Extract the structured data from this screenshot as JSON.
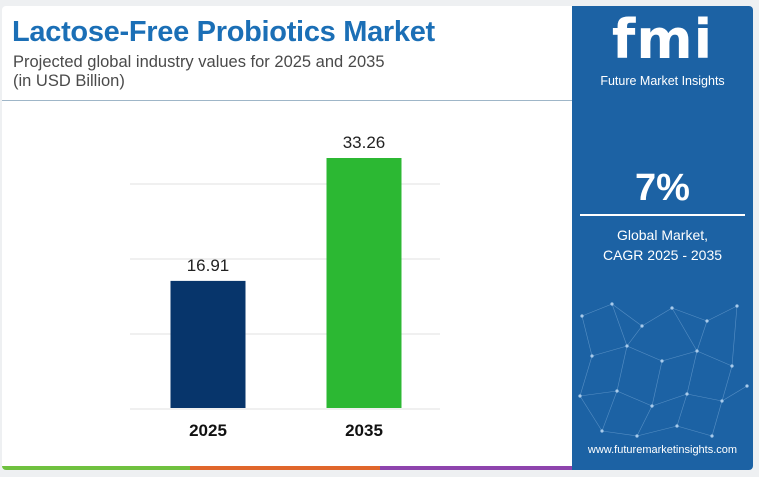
{
  "colors": {
    "title": "#1b6fb6",
    "bar_2025": "#07356b",
    "bar_2035": "#2cb833",
    "side_panel": "#1c62a4",
    "footer": [
      "#6fc13f",
      "#e0662b",
      "#8e44ad",
      "#1c62a4"
    ]
  },
  "header": {
    "title": "Lactose-Free Probiotics Market",
    "subtitle_line1": "Projected global industry values for 2025 and 2035",
    "subtitle_line2": "(in USD Billion)"
  },
  "chart_data": {
    "type": "bar",
    "categories": [
      "2025",
      "2035"
    ],
    "values": [
      16.91,
      33.26
    ],
    "value_labels": [
      "16.91",
      "33.26"
    ],
    "ylim": [
      0,
      36
    ],
    "grid": true,
    "legend": "none"
  },
  "side_panel": {
    "logo": "fmi",
    "logo_subtitle": "Future Market Insights",
    "cagr_value": "7%",
    "cagr_label_line1": "Global Market,",
    "cagr_label_line2": "CAGR 2025 - 2035",
    "website": "www.futuremarketinsights.com"
  }
}
